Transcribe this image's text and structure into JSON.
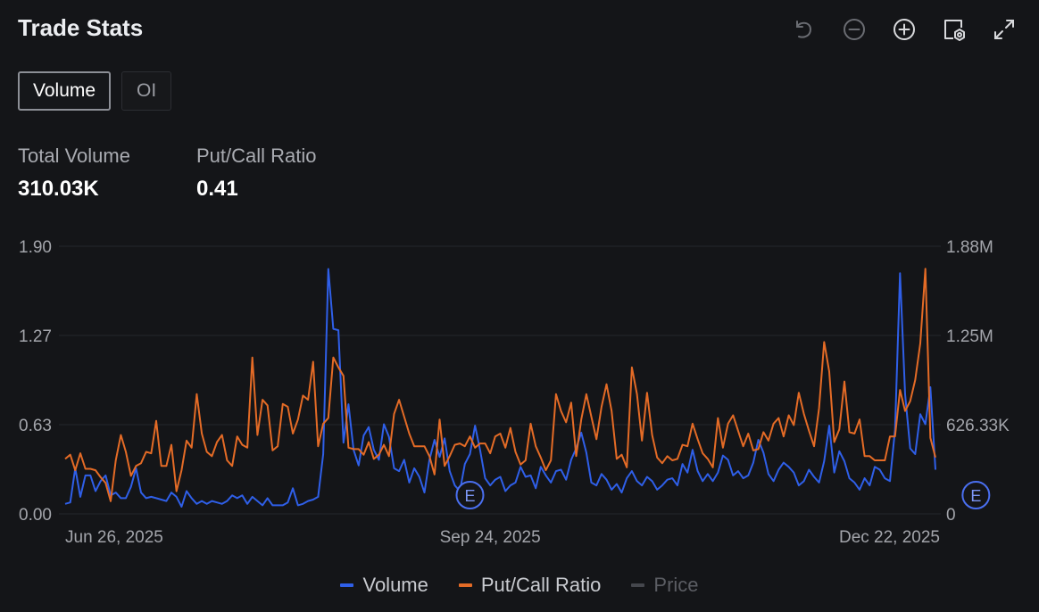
{
  "header": {
    "title": "Trade Stats"
  },
  "toolbar": {
    "icons": [
      "undo-icon",
      "zoom-out-icon",
      "zoom-in-icon",
      "settings-icon",
      "fullscreen-icon"
    ]
  },
  "tabs": [
    {
      "label": "Volume",
      "active": true
    },
    {
      "label": "OI",
      "active": false
    }
  ],
  "stats": {
    "total_volume": {
      "label": "Total Volume",
      "value": "310.03K"
    },
    "put_call_ratio": {
      "label": "Put/Call Ratio",
      "value": "0.41"
    }
  },
  "legend": [
    {
      "label": "Volume",
      "color": "#2f5fe8",
      "enabled": true
    },
    {
      "label": "Put/Call Ratio",
      "color": "#e46b26",
      "enabled": true
    },
    {
      "label": "Price",
      "color": "#45474d",
      "enabled": false
    }
  ],
  "chart_data": {
    "type": "line",
    "x_tick_labels": [
      "Jun 26, 2025",
      "Sep 24, 2025",
      "Dec 22, 2025"
    ],
    "x_tick_index": [
      0,
      84,
      167
    ],
    "y_left": {
      "ticks": [
        "0.00",
        "0.63",
        "1.27",
        "1.90"
      ],
      "range": [
        0,
        1.9
      ]
    },
    "y_right": {
      "ticks": [
        "0",
        "626.33K",
        "1.25M",
        "1.88M"
      ],
      "range": [
        0,
        1880000
      ]
    },
    "grid": true,
    "legend_position": "bottom-center",
    "earnings_markers": [
      {
        "label": "E",
        "index": 80
      },
      {
        "label": "E",
        "index": 180
      }
    ],
    "series": [
      {
        "name": "Volume",
        "axis": "right",
        "color": "#2f5fe8",
        "values": [
          70000,
          80000,
          320000,
          120000,
          270000,
          270000,
          160000,
          230000,
          270000,
          130000,
          150000,
          110000,
          110000,
          190000,
          320000,
          150000,
          110000,
          120000,
          110000,
          100000,
          90000,
          150000,
          120000,
          50000,
          160000,
          110000,
          70000,
          90000,
          70000,
          90000,
          80000,
          70000,
          90000,
          130000,
          110000,
          130000,
          70000,
          120000,
          90000,
          60000,
          110000,
          60000,
          60000,
          60000,
          80000,
          180000,
          60000,
          70000,
          90000,
          100000,
          120000,
          420000,
          1720000,
          1300000,
          1290000,
          500000,
          770000,
          450000,
          340000,
          550000,
          610000,
          450000,
          380000,
          630000,
          540000,
          320000,
          300000,
          380000,
          220000,
          320000,
          260000,
          150000,
          380000,
          520000,
          400000,
          530000,
          300000,
          200000,
          160000,
          350000,
          420000,
          620000,
          450000,
          250000,
          200000,
          240000,
          260000,
          160000,
          200000,
          220000,
          330000,
          260000,
          270000,
          180000,
          330000,
          270000,
          220000,
          300000,
          310000,
          240000,
          380000,
          460000,
          570000,
          430000,
          220000,
          200000,
          280000,
          240000,
          170000,
          210000,
          150000,
          250000,
          300000,
          230000,
          200000,
          260000,
          230000,
          170000,
          200000,
          240000,
          250000,
          200000,
          350000,
          290000,
          450000,
          300000,
          230000,
          280000,
          230000,
          290000,
          410000,
          380000,
          270000,
          300000,
          250000,
          270000,
          360000,
          520000,
          430000,
          280000,
          230000,
          310000,
          360000,
          330000,
          290000,
          200000,
          230000,
          310000,
          260000,
          220000,
          370000,
          620000,
          290000,
          440000,
          370000,
          250000,
          220000,
          170000,
          250000,
          200000,
          330000,
          310000,
          250000,
          230000,
          590000,
          1690000,
          840000,
          460000,
          420000,
          700000,
          630000,
          890000,
          310000
        ]
      },
      {
        "name": "Put/Call Ratio",
        "axis": "left",
        "color": "#e46b26",
        "values": [
          0.39,
          0.42,
          0.31,
          0.43,
          0.32,
          0.32,
          0.31,
          0.26,
          0.22,
          0.09,
          0.38,
          0.56,
          0.44,
          0.27,
          0.34,
          0.36,
          0.44,
          0.43,
          0.66,
          0.34,
          0.34,
          0.49,
          0.16,
          0.31,
          0.52,
          0.47,
          0.85,
          0.57,
          0.44,
          0.41,
          0.51,
          0.56,
          0.38,
          0.34,
          0.55,
          0.49,
          0.47,
          1.11,
          0.56,
          0.81,
          0.77,
          0.45,
          0.48,
          0.78,
          0.76,
          0.57,
          0.67,
          0.84,
          0.81,
          1.08,
          0.48,
          0.64,
          0.68,
          1.11,
          1.04,
          0.98,
          0.47,
          0.46,
          0.46,
          0.42,
          0.51,
          0.39,
          0.42,
          0.49,
          0.41,
          0.71,
          0.81,
          0.69,
          0.57,
          0.48,
          0.48,
          0.48,
          0.41,
          0.28,
          0.67,
          0.34,
          0.41,
          0.49,
          0.5,
          0.48,
          0.55,
          0.47,
          0.5,
          0.5,
          0.43,
          0.55,
          0.57,
          0.47,
          0.61,
          0.44,
          0.35,
          0.38,
          0.64,
          0.48,
          0.4,
          0.31,
          0.38,
          0.85,
          0.73,
          0.65,
          0.79,
          0.41,
          0.67,
          0.85,
          0.69,
          0.53,
          0.76,
          0.92,
          0.73,
          0.39,
          0.42,
          0.33,
          1.04,
          0.85,
          0.52,
          0.86,
          0.56,
          0.4,
          0.36,
          0.41,
          0.38,
          0.39,
          0.49,
          0.48,
          0.64,
          0.53,
          0.43,
          0.39,
          0.33,
          0.68,
          0.47,
          0.64,
          0.7,
          0.59,
          0.48,
          0.57,
          0.45,
          0.46,
          0.58,
          0.52,
          0.64,
          0.68,
          0.55,
          0.7,
          0.63,
          0.86,
          0.71,
          0.59,
          0.48,
          0.75,
          1.22,
          1.01,
          0.51,
          0.6,
          0.94,
          0.58,
          0.57,
          0.67,
          0.41,
          0.41,
          0.38,
          0.38,
          0.38,
          0.55,
          0.55,
          0.88,
          0.73,
          0.8,
          0.95,
          1.21,
          1.74,
          0.54,
          0.4
        ]
      }
    ]
  }
}
